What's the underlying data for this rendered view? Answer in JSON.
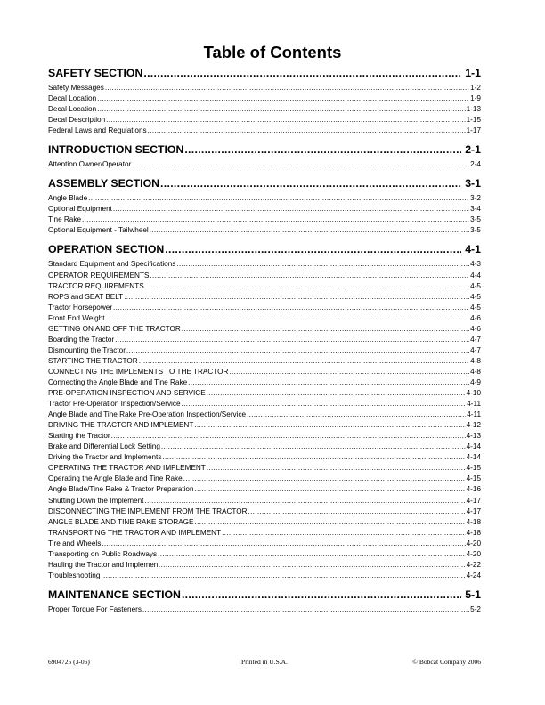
{
  "title": "Table of Contents",
  "sections": [
    {
      "label": "SAFETY SECTION",
      "page": "1-1",
      "entries": [
        {
          "label": "Safety Messages",
          "page": "1-2"
        },
        {
          "label": "Decal Location",
          "page": "1-9"
        },
        {
          "label": "Decal Location",
          "page": "1-13"
        },
        {
          "label": "Decal Description",
          "page": "1-15"
        },
        {
          "label": "Federal Laws and Regulations",
          "page": "1-17"
        }
      ]
    },
    {
      "label": "INTRODUCTION SECTION",
      "page": "2-1",
      "entries": [
        {
          "label": "Attention Owner/Operator",
          "page": "2-4"
        }
      ]
    },
    {
      "label": "ASSEMBLY SECTION",
      "page": "3-1",
      "entries": [
        {
          "label": "Angle Blade",
          "page": "3-2"
        },
        {
          "label": "Optional Equipment",
          "page": "3-4"
        },
        {
          "label": "Tine Rake",
          "page": "3-5"
        },
        {
          "label": "Optional Equipment - Tailwheel",
          "page": "3-5"
        }
      ]
    },
    {
      "label": "OPERATION SECTION",
      "page": "4-1",
      "entries": [
        {
          "label": "Standard Equipment and Specifications",
          "page": "4-3"
        },
        {
          "label": "OPERATOR REQUIREMENTS",
          "page": "4-4"
        },
        {
          "label": "TRACTOR REQUIREMENTS",
          "page": "4-5"
        },
        {
          "label": "ROPS and SEAT BELT",
          "page": "4-5"
        },
        {
          "label": "Tractor Horsepower",
          "page": "4-5"
        },
        {
          "label": "Front End Weight",
          "page": "4-6"
        },
        {
          "label": "GETTING ON AND OFF THE TRACTOR",
          "page": "4-6"
        },
        {
          "label": "Boarding the Tractor",
          "page": "4-7"
        },
        {
          "label": "Dismounting the Tractor",
          "page": "4-7"
        },
        {
          "label": "STARTING THE TRACTOR",
          "page": "4-8"
        },
        {
          "label": "CONNECTING THE IMPLEMENTS TO THE TRACTOR",
          "page": "4-8"
        },
        {
          "label": "Connecting the Angle Blade and Tine Rake",
          "page": "4-9"
        },
        {
          "label": "PRE-OPERATION INSPECTION AND SERVICE",
          "page": "4-10"
        },
        {
          "label": "Tractor Pre-Operation Inspection/Service",
          "page": "4-11"
        },
        {
          "label": "Angle Blade and Tine Rake Pre-Operation Inspection/Service",
          "page": "4-11"
        },
        {
          "label": "DRIVING THE TRACTOR AND IMPLEMENT",
          "page": "4-12"
        },
        {
          "label": "Starting the Tractor",
          "page": "4-13"
        },
        {
          "label": "Brake and Differential Lock Setting",
          "page": "4-14"
        },
        {
          "label": "Driving the Tractor and Implements",
          "page": "4-14"
        },
        {
          "label": "OPERATING THE TRACTOR AND IMPLEMENT",
          "page": "4-15"
        },
        {
          "label": "Operating the Angle Blade and Tine Rake",
          "page": "4-15"
        },
        {
          "label": "Angle Blade/Tine Rake & Tractor Preparation",
          "page": "4-16"
        },
        {
          "label": "Shutting Down the Implement",
          "page": "4-17"
        },
        {
          "label": "DISCONNECTING THE IMPLEMENT FROM THE TRACTOR",
          "page": "4-17"
        },
        {
          "label": "ANGLE BLADE AND TINE RAKE STORAGE",
          "page": "4-18"
        },
        {
          "label": "TRANSPORTING THE TRACTOR AND IMPLEMENT",
          "page": "4-18"
        },
        {
          "label": "Tire and Wheels",
          "page": "4-20"
        },
        {
          "label": "Transporting on Public Roadways",
          "page": "4-20"
        },
        {
          "label": "Hauling the Tractor and Implement",
          "page": "4-22"
        },
        {
          "label": "Troubleshooting",
          "page": "4-24"
        }
      ]
    },
    {
      "label": "MAINTENANCE SECTION",
      "page": "5-1",
      "entries": [
        {
          "label": "Proper Torque For Fasteners",
          "page": "5-2"
        }
      ]
    }
  ],
  "footer": {
    "part_number": "6904725 (3-06)",
    "printed": "Printed in U.S.A.",
    "copyright": "© Bobcat Company 2006"
  }
}
